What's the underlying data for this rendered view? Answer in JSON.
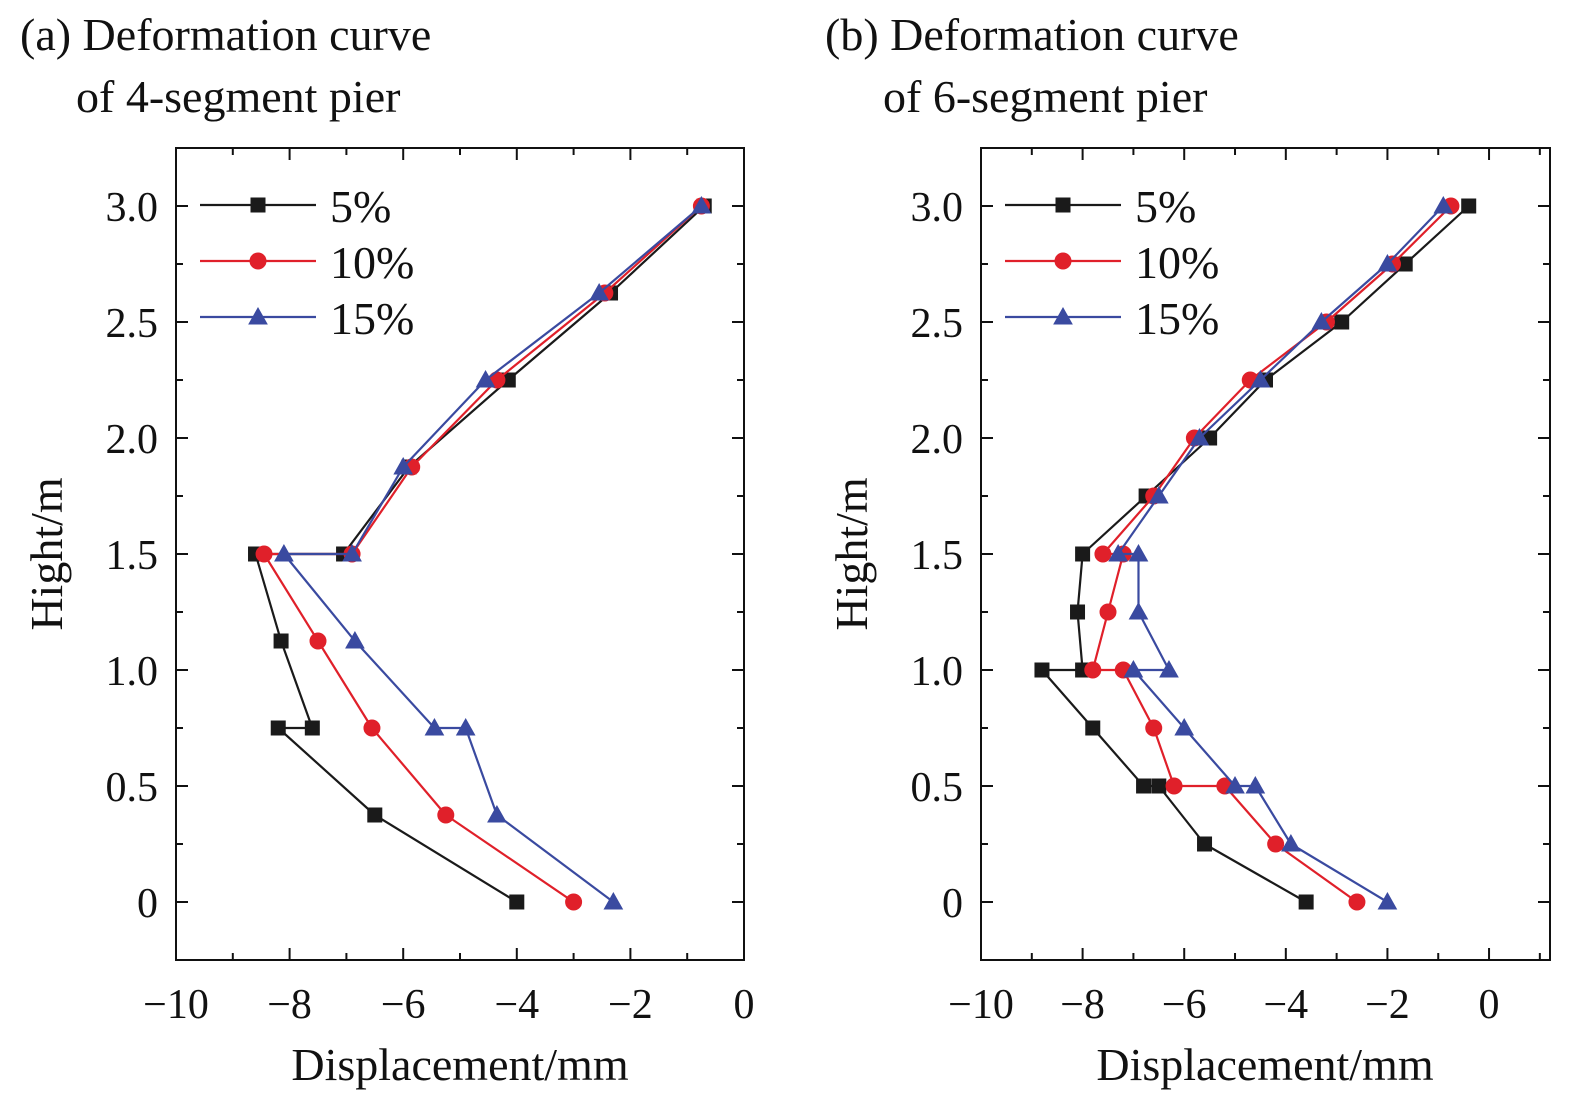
{
  "panels": {
    "a": {
      "title_line1": "(a) Deformation curve",
      "title_line2": "of 4-segment pier"
    },
    "b": {
      "title_line1": "(b) Deformation curve",
      "title_line2": "of 6-segment pier"
    }
  },
  "colors": {
    "5%": "#1a1a1a",
    "10%": "#e0202a",
    "15%": "#3a4aa0"
  },
  "chart_data": [
    {
      "type": "line",
      "title": "(a) Deformation curve of 4-segment pier",
      "xlabel": "Displacement/mm",
      "ylabel": "Hight/m",
      "xlim": [
        -10,
        0
      ],
      "ylim": [
        -0.25,
        3.25
      ],
      "xticks": [
        "−10",
        "−8",
        "−6",
        "−4",
        "−2",
        "0"
      ],
      "yticks": [
        "0",
        "0.5",
        "1.0",
        "1.5",
        "2.0",
        "2.5",
        "3.0"
      ],
      "legend": "top-left",
      "series": [
        {
          "name": "5%",
          "marker": "square",
          "color": "#1a1a1a",
          "points": [
            [
              -4.0,
              0
            ],
            [
              -6.5,
              0.375
            ],
            [
              -8.2,
              0.75
            ],
            [
              -7.6,
              0.75
            ],
            [
              -8.15,
              1.125
            ],
            [
              -8.6,
              1.5
            ],
            [
              -7.05,
              1.5
            ],
            [
              -5.9,
              1.875
            ],
            [
              -4.15,
              2.25
            ],
            [
              -2.35,
              2.625
            ],
            [
              -0.7,
              3.0
            ]
          ]
        },
        {
          "name": "10%",
          "marker": "circle",
          "color": "#e0202a",
          "points": [
            [
              -3.0,
              0
            ],
            [
              -5.25,
              0.375
            ],
            [
              -6.55,
              0.75
            ],
            [
              -7.5,
              1.125
            ],
            [
              -8.45,
              1.5
            ],
            [
              -6.9,
              1.5
            ],
            [
              -5.85,
              1.875
            ],
            [
              -4.35,
              2.25
            ],
            [
              -2.45,
              2.625
            ],
            [
              -0.75,
              3.0
            ]
          ]
        },
        {
          "name": "15%",
          "marker": "triangle",
          "color": "#3a4aa0",
          "points": [
            [
              -2.3,
              0
            ],
            [
              -4.35,
              0.375
            ],
            [
              -4.9,
              0.75
            ],
            [
              -5.45,
              0.75
            ],
            [
              -6.85,
              1.125
            ],
            [
              -8.1,
              1.5
            ],
            [
              -6.9,
              1.5
            ],
            [
              -6.0,
              1.875
            ],
            [
              -4.55,
              2.25
            ],
            [
              -2.55,
              2.625
            ],
            [
              -0.75,
              3.0
            ]
          ]
        }
      ]
    },
    {
      "type": "line",
      "title": "(b) Deformation curve of 6-segment pier",
      "xlabel": "Displacement/mm",
      "ylabel": "Hight/m",
      "xlim": [
        -10,
        1.2
      ],
      "ylim": [
        -0.25,
        3.25
      ],
      "xticks": [
        "−10",
        "−8",
        "−6",
        "−4",
        "−2",
        "0"
      ],
      "yticks": [
        "0",
        "0.5",
        "1.0",
        "1.5",
        "2.0",
        "2.5",
        "3.0"
      ],
      "legend": "top-left",
      "series": [
        {
          "name": "5%",
          "marker": "square",
          "color": "#1a1a1a",
          "points": [
            [
              -3.6,
              0
            ],
            [
              -5.6,
              0.25
            ],
            [
              -6.5,
              0.5
            ],
            [
              -6.8,
              0.5
            ],
            [
              -7.8,
              0.75
            ],
            [
              -8.8,
              1.0
            ],
            [
              -8.0,
              1.0
            ],
            [
              -8.1,
              1.25
            ],
            [
              -8.0,
              1.5
            ],
            [
              -6.75,
              1.75
            ],
            [
              -5.5,
              2.0
            ],
            [
              -4.4,
              2.25
            ],
            [
              -2.9,
              2.5
            ],
            [
              -1.65,
              2.75
            ],
            [
              -0.4,
              3.0
            ]
          ]
        },
        {
          "name": "10%",
          "marker": "circle",
          "color": "#e0202a",
          "points": [
            [
              -2.6,
              0
            ],
            [
              -4.2,
              0.25
            ],
            [
              -5.2,
              0.5
            ],
            [
              -6.2,
              0.5
            ],
            [
              -6.6,
              0.75
            ],
            [
              -7.2,
              1.0
            ],
            [
              -7.8,
              1.0
            ],
            [
              -7.5,
              1.25
            ],
            [
              -7.2,
              1.5
            ],
            [
              -7.6,
              1.5
            ],
            [
              -6.6,
              1.75
            ],
            [
              -5.8,
              2.0
            ],
            [
              -4.7,
              2.25
            ],
            [
              -3.2,
              2.5
            ],
            [
              -1.9,
              2.75
            ],
            [
              -0.75,
              3.0
            ]
          ]
        },
        {
          "name": "15%",
          "marker": "triangle",
          "color": "#3a4aa0",
          "points": [
            [
              -2.0,
              0
            ],
            [
              -3.9,
              0.25
            ],
            [
              -4.6,
              0.5
            ],
            [
              -5.0,
              0.5
            ],
            [
              -6.0,
              0.75
            ],
            [
              -7.0,
              1.0
            ],
            [
              -6.3,
              1.0
            ],
            [
              -6.9,
              1.25
            ],
            [
              -6.9,
              1.5
            ],
            [
              -7.3,
              1.5
            ],
            [
              -6.5,
              1.75
            ],
            [
              -5.7,
              2.0
            ],
            [
              -4.5,
              2.25
            ],
            [
              -3.3,
              2.5
            ],
            [
              -2.0,
              2.75
            ],
            [
              -0.9,
              3.0
            ]
          ]
        }
      ]
    }
  ]
}
